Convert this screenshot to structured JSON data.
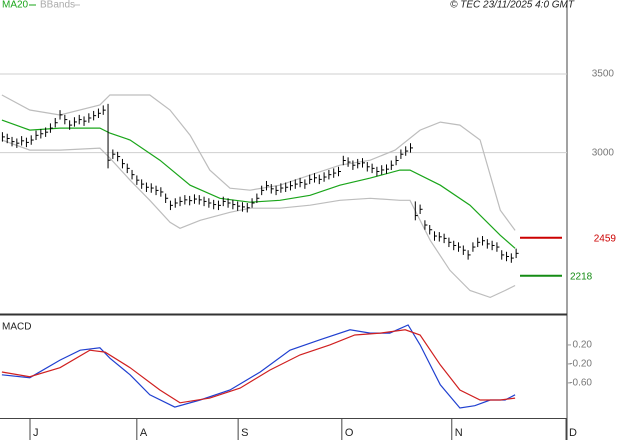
{
  "chart_data": [
    {
      "type": "ohlc",
      "source": "© TEC 23/11/2025 4:0 GMT",
      "xlim": [
        -0.4,
        117.7
      ],
      "ylim": [
        2000,
        3900
      ],
      "yticks": [
        3000,
        3500
      ],
      "grid": true,
      "bars": {
        "color": "#000000",
        "high": [
          3130,
          3120,
          3100,
          3090,
          3105,
          3095,
          3110,
          3140,
          3150,
          3160,
          3186,
          3220,
          3270,
          3240,
          3205,
          3225,
          3240,
          3230,
          3250,
          3265,
          3280,
          3300,
          3310,
          3020,
          3005,
          2960,
          2930,
          2890,
          2855,
          2830,
          2810,
          2805,
          2790,
          2780,
          2740,
          2695,
          2710,
          2720,
          2730,
          2725,
          2735,
          2730,
          2720,
          2710,
          2700,
          2695,
          2720,
          2710,
          2700,
          2690,
          2685,
          2680,
          2710,
          2740,
          2790,
          2820,
          2800,
          2790,
          2805,
          2810,
          2820,
          2830,
          2840,
          2830,
          2860,
          2870,
          2860,
          2875,
          2890,
          2900,
          2910,
          2980,
          2970,
          2950,
          2960,
          2965,
          2940,
          2930,
          2910,
          2920,
          2925,
          2950,
          2980,
          3020,
          3040,
          3060,
          2690,
          2670,
          2570,
          2540,
          2500,
          2495,
          2485,
          2460,
          2440,
          2430,
          2410,
          2380,
          2430,
          2460,
          2470,
          2450,
          2440,
          2430,
          2380,
          2370,
          2360,
          2390
        ],
        "low": [
          3070,
          3060,
          3040,
          3030,
          3045,
          3035,
          3050,
          3080,
          3090,
          3100,
          3126,
          3160,
          3210,
          3180,
          3145,
          3165,
          3180,
          3170,
          3190,
          3205,
          3220,
          3240,
          2900,
          2960,
          2945,
          2900,
          2870,
          2830,
          2795,
          2770,
          2750,
          2745,
          2730,
          2720,
          2680,
          2635,
          2650,
          2660,
          2670,
          2665,
          2675,
          2670,
          2660,
          2650,
          2640,
          2635,
          2660,
          2650,
          2640,
          2630,
          2625,
          2620,
          2650,
          2680,
          2730,
          2760,
          2740,
          2730,
          2745,
          2750,
          2760,
          2770,
          2780,
          2770,
          2800,
          2810,
          2800,
          2815,
          2830,
          2840,
          2850,
          2920,
          2910,
          2890,
          2900,
          2905,
          2880,
          2870,
          2850,
          2860,
          2865,
          2890,
          2920,
          2960,
          2980,
          3000,
          2570,
          2610,
          2510,
          2480,
          2440,
          2435,
          2425,
          2400,
          2380,
          2370,
          2350,
          2320,
          2370,
          2400,
          2410,
          2390,
          2380,
          2370,
          2320,
          2310,
          2300,
          2330
        ],
        "close": [
          3100,
          3090,
          3070,
          3060,
          3075,
          3065,
          3080,
          3110,
          3120,
          3130,
          3156,
          3190,
          3240,
          3210,
          3175,
          3195,
          3210,
          3200,
          3220,
          3235,
          3250,
          3270,
          2952,
          2990,
          2975,
          2930,
          2900,
          2860,
          2825,
          2800,
          2780,
          2775,
          2760,
          2750,
          2710,
          2665,
          2680,
          2690,
          2700,
          2695,
          2705,
          2700,
          2690,
          2680,
          2670,
          2665,
          2690,
          2680,
          2670,
          2660,
          2655,
          2650,
          2680,
          2710,
          2760,
          2790,
          2770,
          2760,
          2775,
          2780,
          2790,
          2800,
          2810,
          2800,
          2830,
          2840,
          2830,
          2845,
          2860,
          2870,
          2880,
          2950,
          2940,
          2920,
          2930,
          2935,
          2910,
          2900,
          2880,
          2890,
          2895,
          2920,
          2950,
          2990,
          3010,
          3030,
          2600,
          2640,
          2540,
          2510,
          2470,
          2465,
          2455,
          2430,
          2410,
          2400,
          2380,
          2350,
          2400,
          2430,
          2440,
          2420,
          2410,
          2400,
          2350,
          2340,
          2330,
          2360
        ]
      },
      "ma": {
        "name": "MA20",
        "color": "#1aa51a",
        "x": [
          0,
          5.8,
          12.1,
          20.4,
          22.5,
          26.7,
          32.9,
          39.2,
          45.4,
          51.7,
          57.9,
          64.2,
          70.4,
          76.7,
          82.9,
          85,
          91.3,
          97.5,
          103.8,
          106.9
        ],
        "values": [
          3207,
          3143,
          3156,
          3156,
          3124,
          3080,
          2952,
          2793,
          2710,
          2685,
          2697,
          2729,
          2793,
          2838,
          2889,
          2889,
          2793,
          2666,
          2475,
          2392
        ]
      },
      "bbands": {
        "name": "BBands",
        "color": "#bdbdbd",
        "upper": {
          "x": [
            0,
            5.8,
            12.1,
            20.4,
            22.5,
            26.7,
            30.8,
            35,
            39.2,
            43.3,
            47.5,
            51.7,
            57.9,
            64.2,
            70.4,
            76.7,
            81.9,
            87.1,
            91.3,
            95.4,
            99.6,
            103.8,
            106.9
          ],
          "values": [
            3366,
            3271,
            3239,
            3303,
            3366,
            3366,
            3366,
            3271,
            3111,
            2889,
            2774,
            2761,
            2793,
            2857,
            2920,
            2952,
            3016,
            3143,
            3194,
            3175,
            3080,
            2634,
            2506
          ]
        },
        "lower": {
          "x": [
            0,
            5.8,
            12.1,
            20.4,
            22.5,
            26.7,
            30.8,
            35,
            37.1,
            41.3,
            47.5,
            51.7,
            57.9,
            64.2,
            70.4,
            76.7,
            82.9,
            85,
            89.2,
            93.3,
            97.5,
            101.7,
            104.8,
            106.9
          ],
          "values": [
            3080,
            3016,
            3016,
            3029,
            2965,
            2825,
            2697,
            2557,
            2519,
            2570,
            2621,
            2647,
            2647,
            2666,
            2697,
            2710,
            2697,
            2697,
            2443,
            2252,
            2124,
            2080,
            2124,
            2156
          ]
        }
      },
      "annotations": [
        {
          "value": 2459,
          "color": "#cc0000"
        },
        {
          "value": 2218,
          "color": "#148c14"
        }
      ]
    },
    {
      "type": "line",
      "title": "MACD",
      "xlim": [
        -0.4,
        117.7
      ],
      "ylim": [
        -1.34,
        0.81
      ],
      "yticks": [
        {
          "value": 0.2,
          "label": "0.20"
        },
        {
          "value": -0.2,
          "label": "-0.20"
        },
        {
          "value": -0.6,
          "label": "-0.60"
        }
      ],
      "xticks": [
        {
          "value": 5.85,
          "label": "J"
        },
        {
          "value": 28.1,
          "label": "A"
        },
        {
          "value": 49.2,
          "label": "S"
        },
        {
          "value": 70.8,
          "label": "O"
        },
        {
          "value": 93.7,
          "label": "N"
        },
        {
          "value": 117.5,
          "label": "D"
        }
      ],
      "series": [
        {
          "color": "#2040d0",
          "x": [
            0,
            5.8,
            12.1,
            16.3,
            20.4,
            22.5,
            26.7,
            30.8,
            36,
            41.3,
            47.5,
            53.8,
            60,
            66.3,
            72.5,
            76.7,
            80.8,
            84.6,
            87.1,
            91.3,
            95.4,
            98.5,
            101.7,
            104.8,
            106.9
          ],
          "values": [
            -0.43,
            -0.49,
            -0.12,
            0.09,
            0.14,
            -0.08,
            -0.43,
            -0.85,
            -1.11,
            -0.96,
            -0.75,
            -0.37,
            0.09,
            0.31,
            0.52,
            0.45,
            0.45,
            0.62,
            0.2,
            -0.64,
            -1.13,
            -1.08,
            -0.96,
            -0.96,
            -0.85
          ]
        },
        {
          "color": "#d02020",
          "x": [
            0,
            5.8,
            12.1,
            18.3,
            21.5,
            26.7,
            32.9,
            37.1,
            43.3,
            49.6,
            55.8,
            62.1,
            68.3,
            73.5,
            78.8,
            84,
            87.1,
            91.3,
            95.4,
            99.6,
            103.8,
            106.9
          ],
          "values": [
            -0.37,
            -0.47,
            -0.28,
            0.09,
            0.05,
            -0.28,
            -0.75,
            -1.02,
            -0.92,
            -0.71,
            -0.33,
            -0.01,
            0.2,
            0.41,
            0.45,
            0.52,
            0.41,
            -0.22,
            -0.75,
            -0.96,
            -0.96,
            -0.92
          ]
        }
      ]
    }
  ]
}
